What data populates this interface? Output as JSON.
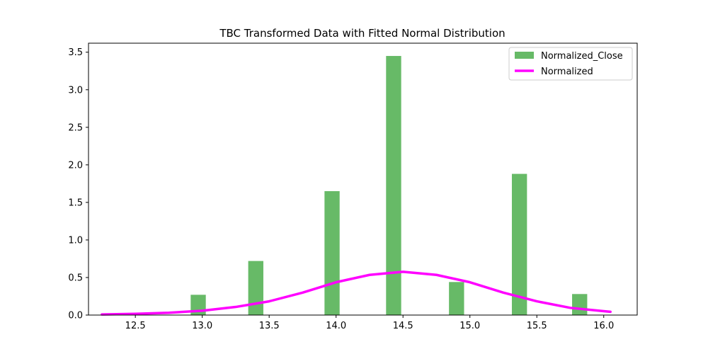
{
  "chart_data": {
    "type": "bar",
    "title": "TBC Transformed Data with Fitted Normal Distribution",
    "xlabel": "",
    "ylabel": "",
    "xlim": [
      12.15,
      16.25
    ],
    "ylim": [
      0,
      3.62
    ],
    "grid": false,
    "legend_position": "top-right",
    "x_ticks": [
      "12.5",
      "13.0",
      "13.5",
      "14.0",
      "14.5",
      "15.0",
      "15.5",
      "16.0"
    ],
    "y_ticks": [
      "0.0",
      "0.5",
      "1.0",
      "1.5",
      "2.0",
      "2.5",
      "3.0",
      "3.5"
    ],
    "series": [
      {
        "name": "Normalized_Close",
        "kind": "histogram",
        "color": "#2ca02c",
        "bin_width": 0.113,
        "bars": [
          {
            "x": 12.97,
            "value": 0.27
          },
          {
            "x": 13.4,
            "value": 0.72
          },
          {
            "x": 13.97,
            "value": 1.65
          },
          {
            "x": 14.43,
            "value": 3.45
          },
          {
            "x": 14.9,
            "value": 0.44
          },
          {
            "x": 15.37,
            "value": 1.88
          },
          {
            "x": 15.82,
            "value": 0.28
          }
        ]
      },
      {
        "name": "Normalized",
        "kind": "line",
        "color": "#ff00ff",
        "x": [
          12.25,
          12.5,
          12.75,
          13.0,
          13.25,
          13.5,
          13.75,
          14.0,
          14.25,
          14.5,
          14.75,
          15.0,
          15.25,
          15.5,
          15.75,
          16.0,
          16.05
        ],
        "values": [
          0.008,
          0.016,
          0.031,
          0.058,
          0.108,
          0.183,
          0.299,
          0.437,
          0.535,
          0.576,
          0.535,
          0.437,
          0.299,
          0.183,
          0.096,
          0.052,
          0.044
        ]
      }
    ]
  }
}
